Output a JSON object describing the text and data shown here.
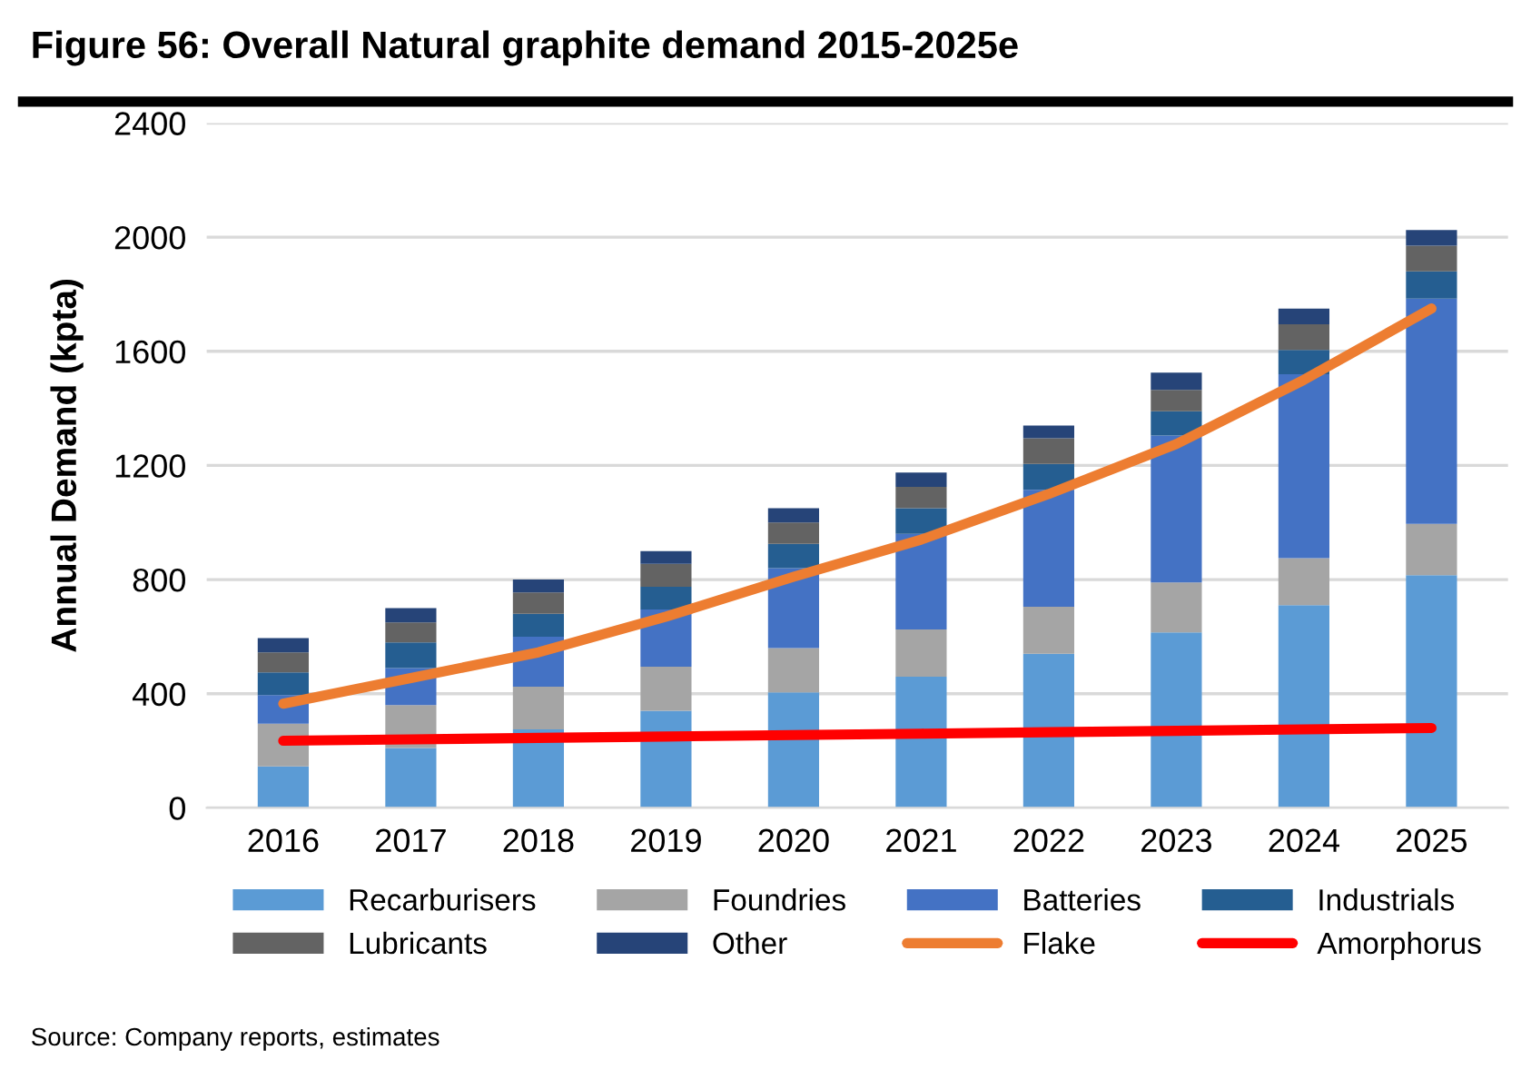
{
  "chart_data": {
    "type": "bar",
    "stacked": true,
    "title": "Figure 56: Overall Natural graphite demand 2015-2025e",
    "ylabel": "Annual Demand (kpta)",
    "categories": [
      "2016",
      "2017",
      "2018",
      "2019",
      "2020",
      "2021",
      "2022",
      "2023",
      "2024",
      "2025"
    ],
    "series": [
      {
        "name": "Recarburisers",
        "color": "#5b9bd5",
        "values": [
          145,
          210,
          275,
          340,
          405,
          460,
          540,
          615,
          710,
          815
        ]
      },
      {
        "name": "Foundries",
        "color": "#a5a5a5",
        "values": [
          150,
          150,
          150,
          155,
          155,
          165,
          165,
          175,
          165,
          180
        ]
      },
      {
        "name": "Batteries",
        "color": "#4472c4",
        "values": [
          100,
          130,
          175,
          200,
          280,
          335,
          410,
          515,
          645,
          790
        ]
      },
      {
        "name": "Industrials",
        "color": "#255e91",
        "values": [
          80,
          90,
          80,
          80,
          85,
          90,
          90,
          85,
          85,
          95
        ]
      },
      {
        "name": "Lubricants",
        "color": "#636363",
        "values": [
          70,
          70,
          75,
          80,
          75,
          75,
          90,
          75,
          90,
          90
        ]
      },
      {
        "name": "Other",
        "color": "#264478",
        "values": [
          50,
          50,
          45,
          45,
          50,
          50,
          45,
          60,
          55,
          55
        ]
      },
      {
        "name": "Flake",
        "type": "line",
        "color": "#ed7d31",
        "values": [
          365,
          455,
          545,
          670,
          810,
          940,
          1100,
          1275,
          1500,
          1750
        ]
      },
      {
        "name": "Amorphorus",
        "type": "line",
        "color": "#ff0000",
        "values": [
          235,
          240,
          245,
          250,
          255,
          260,
          265,
          270,
          275,
          280
        ]
      }
    ],
    "ylim": [
      0,
      2400
    ],
    "yticks": [
      0,
      400,
      800,
      1200,
      1600,
      2000,
      2400
    ],
    "grid": "y",
    "legend": "bottom",
    "annotations": [
      "Source: Company reports, estimates"
    ]
  }
}
